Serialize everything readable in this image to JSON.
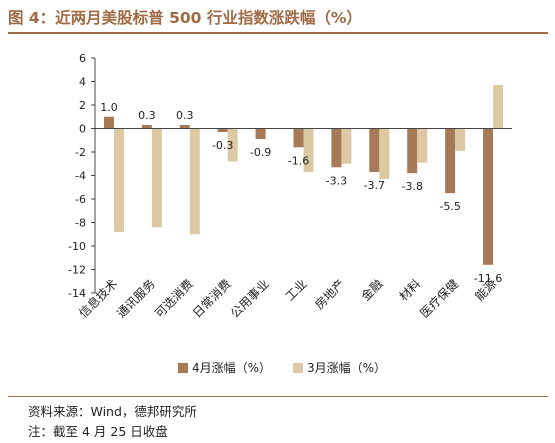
{
  "title": "图 4：近两月美股标普 500 行业指数涨跌幅（%）",
  "source": "资料来源：Wind，德邦研究所",
  "note": "注：截至 4 月 25 日收盘",
  "colors": {
    "accent": "#9e6b45",
    "april": "#a67a56",
    "march": "#dcc8a2"
  },
  "chart_data": {
    "type": "bar",
    "categories": [
      "信息技术",
      "通讯服务",
      "可选消费",
      "日常消费",
      "公用事业",
      "工业",
      "房地产",
      "金融",
      "材料",
      "医疗保健",
      "能源"
    ],
    "series": [
      {
        "name": "4月涨幅（%）",
        "values": [
          1.0,
          0.3,
          0.3,
          -0.3,
          -0.9,
          -1.6,
          -3.3,
          -3.7,
          -3.8,
          -5.5,
          -11.6
        ]
      },
      {
        "name": "3月涨幅（%）",
        "values": [
          -8.8,
          -8.4,
          -9.0,
          -2.8,
          0.0,
          -3.7,
          -3.0,
          -4.3,
          -2.9,
          -1.9,
          3.7
        ]
      }
    ],
    "data_labels": [
      "1.0",
      "0.3",
      "0.3",
      "-0.3",
      "-0.9",
      "-1.6",
      "-3.3",
      "-3.7",
      "-3.8",
      "-5.5",
      "-11.6"
    ],
    "ylim": [
      -14,
      6
    ],
    "yticks": [
      -14,
      -12,
      -10,
      -8,
      -6,
      -4,
      -2,
      0,
      2,
      4,
      6
    ],
    "grid": false,
    "legend_position": "bottom"
  }
}
